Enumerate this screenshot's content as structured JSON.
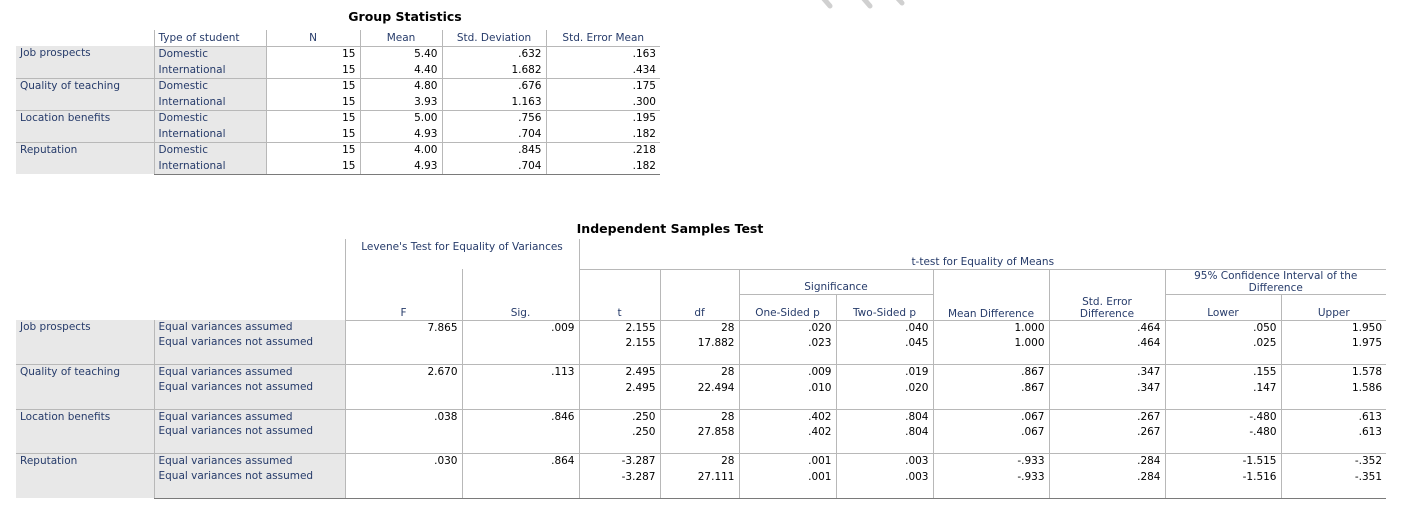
{
  "watermark_color": "#cccccc",
  "group_statistics": {
    "title": "Group Statistics",
    "headers": [
      "Type of student",
      "N",
      "Mean",
      "Std. Deviation",
      "Std. Error Mean"
    ],
    "groups": [
      {
        "label": "Job prospects",
        "rows": [
          {
            "type": "Domestic",
            "n": "15",
            "mean": "5.40",
            "sd": ".632",
            "se": ".163"
          },
          {
            "type": "International",
            "n": "15",
            "mean": "4.40",
            "sd": "1.682",
            "se": ".434"
          }
        ]
      },
      {
        "label": "Quality of teaching",
        "rows": [
          {
            "type": "Domestic",
            "n": "15",
            "mean": "4.80",
            "sd": ".676",
            "se": ".175"
          },
          {
            "type": "International",
            "n": "15",
            "mean": "3.93",
            "sd": "1.163",
            "se": ".300"
          }
        ]
      },
      {
        "label": "Location benefits",
        "rows": [
          {
            "type": "Domestic",
            "n": "15",
            "mean": "5.00",
            "sd": ".756",
            "se": ".195"
          },
          {
            "type": "International",
            "n": "15",
            "mean": "4.93",
            "sd": ".704",
            "se": ".182"
          }
        ]
      },
      {
        "label": "Reputation",
        "rows": [
          {
            "type": "Domestic",
            "n": "15",
            "mean": "4.00",
            "sd": ".845",
            "se": ".218"
          },
          {
            "type": "International",
            "n": "15",
            "mean": "4.93",
            "sd": ".704",
            "se": ".182"
          }
        ]
      }
    ]
  },
  "independent_test": {
    "title": "Independent Samples Test",
    "levene_header": "Levene's Test for Equality of Variances",
    "ttest_header": "t-test for Equality of Means",
    "significance_header": "Significance",
    "ci_header": "95% Confidence Interval of the Difference",
    "col_headers": {
      "f": "F",
      "sig": "Sig.",
      "t": "t",
      "df": "df",
      "one_sided": "One-Sided p",
      "two_sided": "Two-Sided p",
      "mean_diff": "Mean Difference",
      "se_diff": "Std. Error Difference",
      "lower": "Lower",
      "upper": "Upper"
    },
    "groups": [
      {
        "label": "Job prospects",
        "rows": [
          {
            "assump": "Equal variances assumed",
            "f": "7.865",
            "sig": ".009",
            "t": "2.155",
            "df": "28",
            "p1": ".020",
            "p2": ".040",
            "md": "1.000",
            "sed": ".464",
            "lo": ".050",
            "hi": "1.950"
          },
          {
            "assump": "Equal variances not assumed",
            "f": "",
            "sig": "",
            "t": "2.155",
            "df": "17.882",
            "p1": ".023",
            "p2": ".045",
            "md": "1.000",
            "sed": ".464",
            "lo": ".025",
            "hi": "1.975"
          }
        ]
      },
      {
        "label": "Quality of teaching",
        "rows": [
          {
            "assump": "Equal variances assumed",
            "f": "2.670",
            "sig": ".113",
            "t": "2.495",
            "df": "28",
            "p1": ".009",
            "p2": ".019",
            "md": ".867",
            "sed": ".347",
            "lo": ".155",
            "hi": "1.578"
          },
          {
            "assump": "Equal variances not assumed",
            "f": "",
            "sig": "",
            "t": "2.495",
            "df": "22.494",
            "p1": ".010",
            "p2": ".020",
            "md": ".867",
            "sed": ".347",
            "lo": ".147",
            "hi": "1.586"
          }
        ]
      },
      {
        "label": "Location benefits",
        "rows": [
          {
            "assump": "Equal variances assumed",
            "f": ".038",
            "sig": ".846",
            "t": ".250",
            "df": "28",
            "p1": ".402",
            "p2": ".804",
            "md": ".067",
            "sed": ".267",
            "lo": "-.480",
            "hi": ".613"
          },
          {
            "assump": "Equal variances not assumed",
            "f": "",
            "sig": "",
            "t": ".250",
            "df": "27.858",
            "p1": ".402",
            "p2": ".804",
            "md": ".067",
            "sed": ".267",
            "lo": "-.480",
            "hi": ".613"
          }
        ]
      },
      {
        "label": "Reputation",
        "rows": [
          {
            "assump": "Equal variances assumed",
            "f": ".030",
            "sig": ".864",
            "t": "-3.287",
            "df": "28",
            "p1": ".001",
            "p2": ".003",
            "md": "-.933",
            "sed": ".284",
            "lo": "-1.515",
            "hi": "-.352"
          },
          {
            "assump": "Equal variances not assumed",
            "f": "",
            "sig": "",
            "t": "-3.287",
            "df": "27.111",
            "p1": ".001",
            "p2": ".003",
            "md": "-.933",
            "sed": ".284",
            "lo": "-1.516",
            "hi": "-.351"
          }
        ]
      }
    ]
  }
}
